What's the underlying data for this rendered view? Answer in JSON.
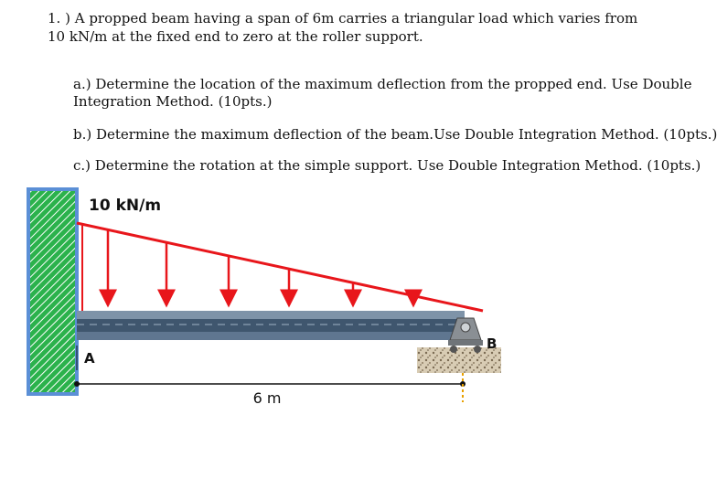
{
  "problem": {
    "number": "1.",
    "intro_line1": ") A propped beam having a span of 6m carries a triangular load which varies from",
    "intro_line2": "10 kN/m at the fixed end to zero at the roller support.",
    "part_a_line1": "a.) Determine the location of the maximum deflection from the propped end. Use Double",
    "part_a_line2": "Integration Method. (10pts.)",
    "part_b": "b.) Determine the maximum deflection of the beam.Use Double Integration Method. (10pts.)",
    "part_c": "c.) Determine the rotation at the simple support. Use Double Integration Method. (10pts.)"
  },
  "figure": {
    "load_label": "10 kN/m",
    "support_a_label": "A",
    "support_b_label": "B",
    "span_label": "6 m",
    "colors": {
      "wall_fill": "#2bb24c",
      "wall_border": "#5b8fd6",
      "load_red": "#e8161b",
      "beam": "#3f566e",
      "beam_highlight": "#7e93a8",
      "ground": "#c9b89a"
    }
  }
}
